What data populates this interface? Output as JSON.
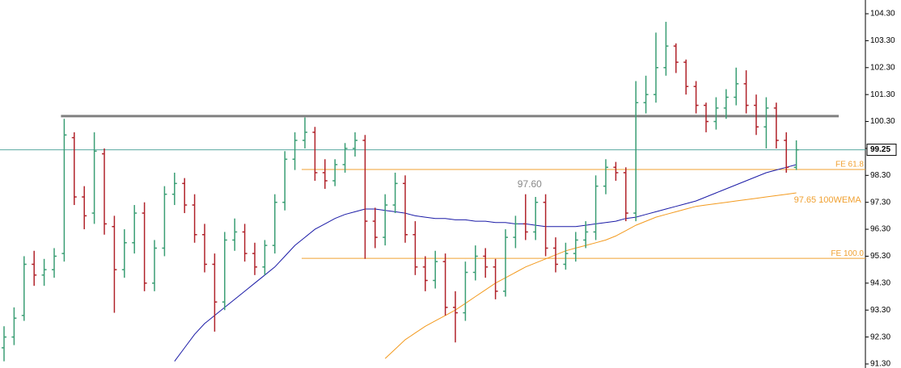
{
  "chart_data": {
    "type": "ohlc",
    "ylim": [
      91.15,
      104.81
    ],
    "yticks": [
      {
        "value": 91.3,
        "label": "91.30"
      },
      {
        "value": 92.3,
        "label": "92.30"
      },
      {
        "value": 93.3,
        "label": "93.30"
      },
      {
        "value": 94.3,
        "label": "94.30"
      },
      {
        "value": 95.3,
        "label": "95.30"
      },
      {
        "value": 96.3,
        "label": "96.30"
      },
      {
        "value": 97.3,
        "label": "97.30"
      },
      {
        "value": 98.3,
        "label": "98.30"
      },
      {
        "value": 99.3,
        "label": "99.30"
      },
      {
        "value": 100.3,
        "label": "100.30"
      },
      {
        "value": 101.3,
        "label": "101.30"
      },
      {
        "value": 102.3,
        "label": "102.30"
      },
      {
        "value": 103.3,
        "label": "103.30"
      },
      {
        "value": 104.3,
        "label": "104.30"
      }
    ],
    "up_color": "#3a9e74",
    "down_color": "#b0222a",
    "open": [
      91.9,
      92.3,
      93.1,
      95.0,
      94.6,
      94.8,
      95.4,
      99.7,
      97.5,
      96.9,
      99.1,
      96.4,
      94.8,
      95.8,
      96.9,
      94.3,
      95.6,
      97.6,
      98.0,
      97.2,
      96.1,
      95.0,
      93.6,
      95.9,
      96.2,
      95.4,
      94.9,
      95.7,
      97.3,
      98.9,
      99.6,
      99.9,
      98.4,
      98.1,
      98.7,
      99.3,
      99.6,
      96.6,
      96.0,
      97.2,
      98.0,
      96.1,
      94.9,
      94.4,
      95.1,
      93.4,
      93.2,
      94.7,
      95.3,
      94.9,
      94.0,
      96.0,
      96.5,
      96.2,
      97.3,
      95.6,
      95.0,
      95.4,
      95.9,
      96.2,
      97.9,
      98.6,
      98.4,
      96.9,
      101.0,
      101.3,
      102.3,
      103.1,
      102.5,
      101.6,
      100.9,
      100.3,
      100.8,
      101.2,
      101.7,
      100.9,
      100.1,
      100.8,
      99.6,
      98.6
    ],
    "high": [
      92.7,
      93.4,
      95.3,
      95.5,
      95.2,
      95.6,
      100.4,
      99.9,
      97.9,
      99.9,
      99.3,
      96.8,
      96.3,
      97.2,
      97.3,
      95.9,
      97.9,
      98.4,
      98.2,
      97.6,
      96.5,
      95.4,
      96.2,
      96.7,
      96.5,
      95.8,
      95.9,
      97.6,
      99.2,
      99.9,
      100.45,
      100.1,
      98.9,
      98.9,
      99.5,
      99.9,
      99.8,
      97.1,
      97.6,
      98.4,
      98.3,
      96.6,
      95.3,
      95.5,
      95.4,
      94.0,
      95.1,
      95.7,
      95.6,
      95.2,
      96.3,
      96.8,
      97.6,
      97.5,
      97.6,
      96.0,
      95.8,
      96.2,
      96.6,
      98.3,
      98.9,
      98.8,
      98.6,
      101.8,
      102.0,
      103.6,
      104.0,
      103.2,
      102.6,
      101.8,
      101.0,
      101.2,
      101.5,
      102.3,
      102.2,
      101.3,
      101.2,
      101.0,
      99.9,
      99.6
    ],
    "low": [
      91.4,
      92.0,
      92.9,
      94.2,
      94.2,
      94.5,
      95.1,
      97.2,
      96.3,
      96.5,
      96.1,
      93.2,
      94.5,
      95.4,
      94.0,
      94.0,
      95.3,
      97.2,
      96.9,
      95.8,
      94.7,
      92.5,
      93.3,
      95.5,
      95.1,
      94.6,
      94.6,
      95.4,
      97.0,
      98.5,
      99.3,
      98.1,
      97.8,
      97.9,
      98.4,
      99.0,
      95.2,
      95.6,
      95.7,
      96.9,
      95.8,
      94.6,
      94.0,
      94.1,
      93.1,
      92.1,
      92.9,
      94.4,
      94.5,
      93.7,
      93.8,
      95.6,
      95.9,
      95.9,
      95.3,
      94.7,
      94.8,
      95.1,
      95.6,
      95.9,
      97.6,
      98.1,
      96.6,
      96.6,
      100.6,
      101.0,
      102.0,
      102.1,
      101.3,
      100.6,
      99.9,
      100.0,
      100.4,
      100.9,
      100.6,
      99.8,
      99.3,
      99.3,
      98.4,
      98.5
    ],
    "close": [
      92.3,
      93.0,
      95.0,
      94.6,
      94.8,
      95.3,
      99.8,
      97.5,
      96.8,
      99.2,
      96.5,
      94.8,
      95.8,
      96.9,
      94.3,
      95.6,
      97.6,
      98.0,
      97.2,
      96.1,
      95.0,
      93.6,
      95.9,
      96.2,
      95.4,
      94.9,
      95.7,
      97.3,
      98.9,
      99.6,
      99.9,
      98.4,
      98.1,
      98.7,
      99.3,
      99.6,
      96.6,
      96.0,
      97.2,
      98.0,
      96.1,
      94.9,
      94.4,
      95.1,
      93.4,
      93.2,
      94.7,
      95.3,
      94.9,
      94.0,
      96.0,
      96.5,
      96.2,
      97.3,
      95.6,
      95.0,
      95.4,
      95.9,
      96.2,
      97.9,
      98.6,
      98.4,
      96.9,
      101.0,
      101.3,
      102.3,
      103.1,
      102.5,
      101.6,
      100.9,
      100.3,
      100.8,
      101.2,
      101.7,
      100.9,
      100.1,
      100.8,
      99.6,
      98.6,
      99.25
    ],
    "lines": [
      {
        "color": "#1a1aa6",
        "values": [
          null,
          null,
          null,
          null,
          null,
          null,
          null,
          null,
          null,
          null,
          null,
          null,
          null,
          null,
          null,
          null,
          null,
          91.4,
          91.9,
          92.4,
          92.8,
          93.1,
          93.4,
          93.7,
          94.0,
          94.3,
          94.6,
          94.9,
          95.3,
          95.7,
          96.0,
          96.3,
          96.5,
          96.7,
          96.85,
          96.95,
          97.05,
          97.05,
          97.0,
          96.95,
          96.9,
          96.8,
          96.75,
          96.7,
          96.7,
          96.65,
          96.65,
          96.6,
          96.6,
          96.55,
          96.55,
          96.5,
          96.5,
          96.45,
          96.4,
          96.4,
          96.4,
          96.4,
          96.45,
          96.5,
          96.55,
          96.6,
          96.7,
          96.75,
          96.85,
          96.95,
          97.05,
          97.15,
          97.25,
          97.35,
          97.5,
          97.65,
          97.8,
          97.95,
          98.1,
          98.25,
          98.4,
          98.5,
          98.6,
          98.7
        ]
      },
      {
        "color": "#f39a1e",
        "values": [
          null,
          null,
          null,
          null,
          null,
          null,
          null,
          null,
          null,
          null,
          null,
          null,
          null,
          null,
          null,
          null,
          null,
          null,
          null,
          null,
          null,
          null,
          null,
          null,
          null,
          null,
          null,
          null,
          null,
          null,
          null,
          null,
          null,
          null,
          null,
          null,
          null,
          null,
          91.5,
          91.85,
          92.2,
          92.45,
          92.7,
          92.9,
          93.1,
          93.3,
          93.55,
          93.8,
          94.05,
          94.3,
          94.5,
          94.7,
          94.9,
          95.05,
          95.2,
          95.35,
          95.5,
          95.6,
          95.7,
          95.8,
          95.9,
          96.05,
          96.25,
          96.45,
          96.6,
          96.75,
          96.85,
          96.95,
          97.05,
          97.15,
          97.2,
          97.25,
          97.3,
          97.35,
          97.4,
          97.45,
          97.5,
          97.55,
          97.6,
          97.65
        ]
      }
    ],
    "levels": [
      {
        "value": 100.5,
        "color": "#808080",
        "x_start": 6
      },
      {
        "value": 98.52,
        "color": "#f0a030",
        "x_start": 30,
        "label": "FE 61.8"
      },
      {
        "value": 95.22,
        "color": "#f0a030",
        "x_start": 30,
        "label": "FE 100.0"
      }
    ],
    "current_price": {
      "value": 99.25,
      "color": "#5aa8a0"
    },
    "annotations": [
      {
        "text": "97.60",
        "bar": 52,
        "color": "#888888"
      },
      {
        "text": "97.65 100WEMA",
        "bar": 79,
        "color": "#f0a030"
      }
    ]
  }
}
